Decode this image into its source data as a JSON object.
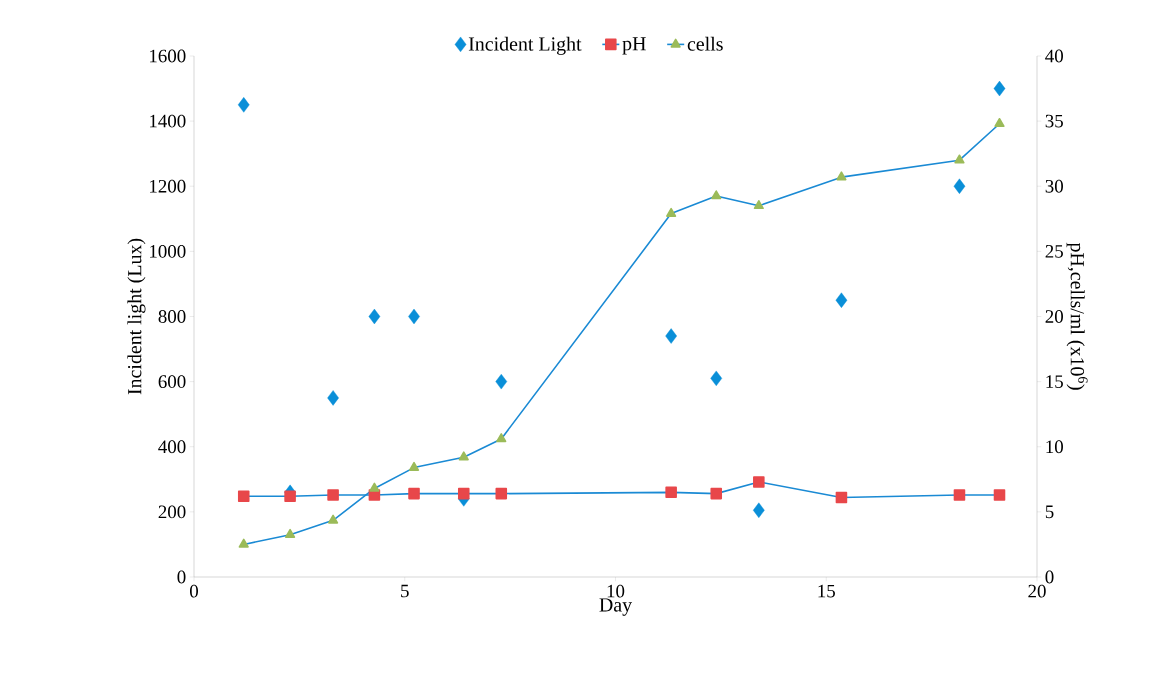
{
  "chart_data": {
    "type": "line",
    "xlabel": "Day",
    "ylabel": "Incident light (Lux)",
    "y2label": "pH,cells/ml (x10$^{6}$)",
    "xlim": [
      0,
      20
    ],
    "xticks": [
      0,
      5,
      10,
      15,
      20
    ],
    "ylim": [
      0,
      1600
    ],
    "yticks": [
      0,
      200,
      400,
      600,
      800,
      1000,
      1200,
      1400,
      1600
    ],
    "y2lim": [
      0,
      40
    ],
    "y2ticks": [
      0,
      5,
      10,
      15,
      20,
      25,
      30,
      35,
      40
    ],
    "legend": "top",
    "line_style": "solid",
    "series": [
      {
        "name": "Incident Light",
        "type": "scatter",
        "marker": "diamond",
        "color": "#0a8fd8",
        "axis": "y",
        "x": [
          1.18,
          2.28,
          3.3,
          4.28,
          5.22,
          6.4,
          7.29,
          11.32,
          12.39,
          13.4,
          15.36,
          18.16,
          19.11
        ],
        "values": [
          1450,
          260,
          550,
          800,
          800,
          240,
          600,
          740,
          610,
          205,
          850,
          1200,
          1500
        ]
      },
      {
        "name": "pH",
        "marker": "square",
        "color": "#e8474a",
        "axis": "y2",
        "x": [
          1.18,
          2.28,
          3.3,
          4.28,
          5.22,
          6.4,
          7.29,
          11.32,
          12.39,
          13.4,
          15.36,
          18.16,
          19.11
        ],
        "values": [
          6.2,
          6.2,
          6.3,
          6.3,
          6.4,
          6.4,
          6.4,
          6.5,
          6.4,
          7.3,
          6.1,
          6.3,
          6.3
        ]
      },
      {
        "name": "cells",
        "marker": "triangle",
        "color": "#9bbb59",
        "axis": "y2",
        "x": [
          1.18,
          2.28,
          3.3,
          4.28,
          5.22,
          6.4,
          7.29,
          11.32,
          12.39,
          13.4,
          15.36,
          18.16,
          19.11
        ],
        "values": [
          2.5,
          3.25,
          4.35,
          6.8,
          8.4,
          9.2,
          10.6,
          27.9,
          29.25,
          28.5,
          30.7,
          32.0,
          34.8
        ]
      }
    ]
  }
}
